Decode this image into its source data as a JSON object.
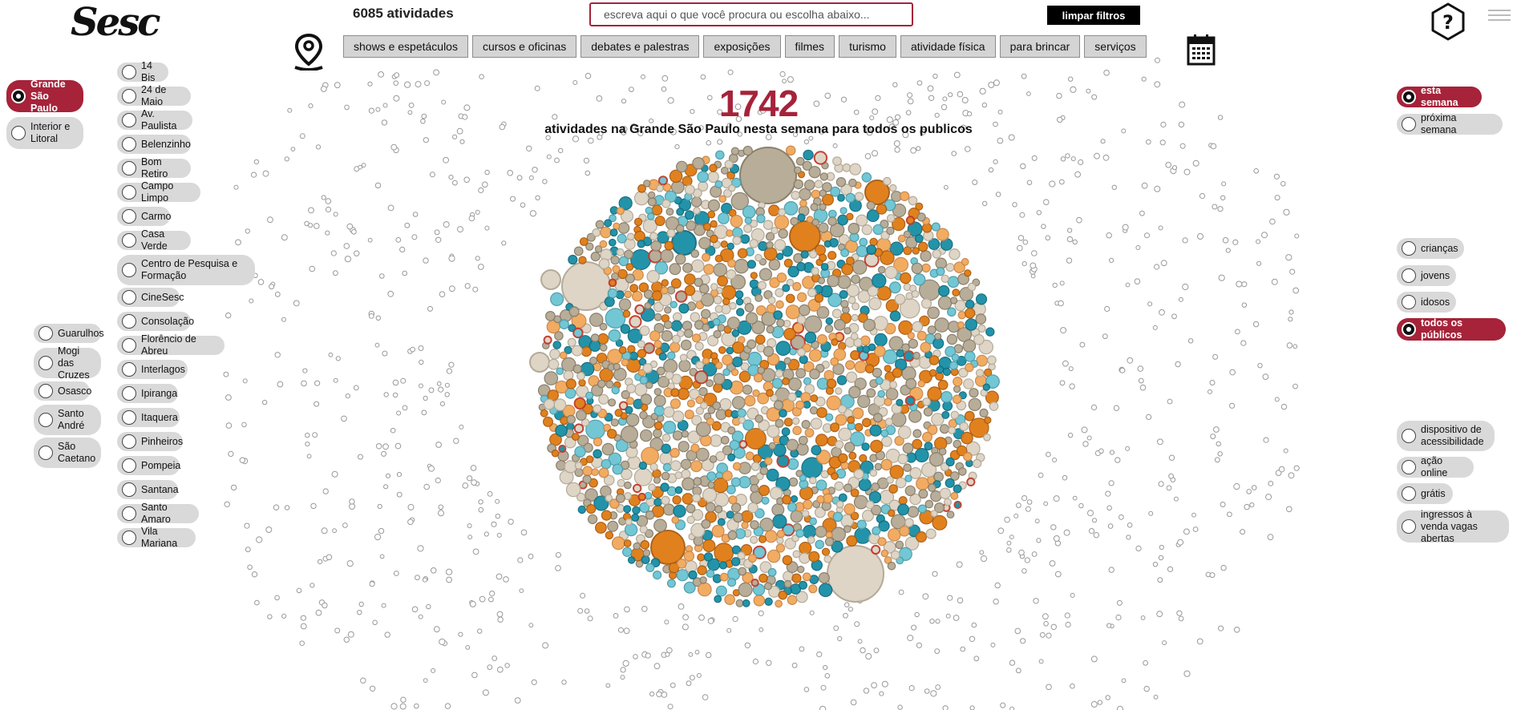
{
  "header": {
    "logo_text": "Sesc",
    "total_activities": "6085 atividades",
    "search_placeholder": "escreva aqui o que você procura ou escolha abaixo...",
    "clear_filters_label": "limpar filtros",
    "help_icon": "question-mark-hexagon-icon",
    "menu_icon": "hamburger-menu-icon",
    "location_icon": "map-pin-icon",
    "calendar_icon": "calendar-icon"
  },
  "categories": [
    "shows e espetáculos",
    "cursos e oficinas",
    "debates e palestras",
    "exposições",
    "filmes",
    "turismo",
    "atividade física",
    "para brincar",
    "serviços"
  ],
  "summary": {
    "count": "1742",
    "description": "atividades na Grande São Paulo nesta semana para todos os publicos"
  },
  "regions": [
    {
      "label": "Grande São Paulo",
      "selected": true
    },
    {
      "label": "Interior e Litoral",
      "selected": false
    }
  ],
  "units": [
    "14 Bis",
    "24 de Maio",
    "Av. Paulista",
    "Belenzinho",
    "Bom Retiro",
    "Campo Limpo",
    "Carmo",
    "Casa Verde",
    "Centro de Pesquisa e Formação",
    "CineSesc",
    "Consolação",
    "Florêncio de Abreu",
    "Interlagos",
    "Ipiranga",
    "Itaquera",
    "Pinheiros",
    "Pompeia",
    "Santana",
    "Santo Amaro",
    "Vila Mariana"
  ],
  "metro_units": [
    "Guarulhos",
    "Mogi das Cruzes",
    "Osasco",
    "Santo André",
    "São Caetano"
  ],
  "period": [
    {
      "label": "esta semana",
      "selected": true
    },
    {
      "label": "próxima semana",
      "selected": false
    }
  ],
  "audience": [
    {
      "label": "crianças",
      "selected": false
    },
    {
      "label": "jovens",
      "selected": false
    },
    {
      "label": "idosos",
      "selected": false
    },
    {
      "label": "todos os públicos",
      "selected": true
    }
  ],
  "features": [
    {
      "label": "dispositivo de acessibilidade",
      "selected": false
    },
    {
      "label": "ação online",
      "selected": false
    },
    {
      "label": "grátis",
      "selected": false
    },
    {
      "label": "ingressos à venda vagas abertas",
      "selected": false
    }
  ],
  "colors": {
    "accent": "#a6233a",
    "bubble_orange": "#e07b12",
    "bubble_light_orange": "#f1a85a",
    "bubble_teal": "#188ea5",
    "bubble_light_teal": "#6cc4d2",
    "bubble_taupe": "#b5a993",
    "bubble_light_taupe": "#ddd3c3",
    "button_gray": "#d4d4d4",
    "pill_gray": "#d9d9d9"
  }
}
